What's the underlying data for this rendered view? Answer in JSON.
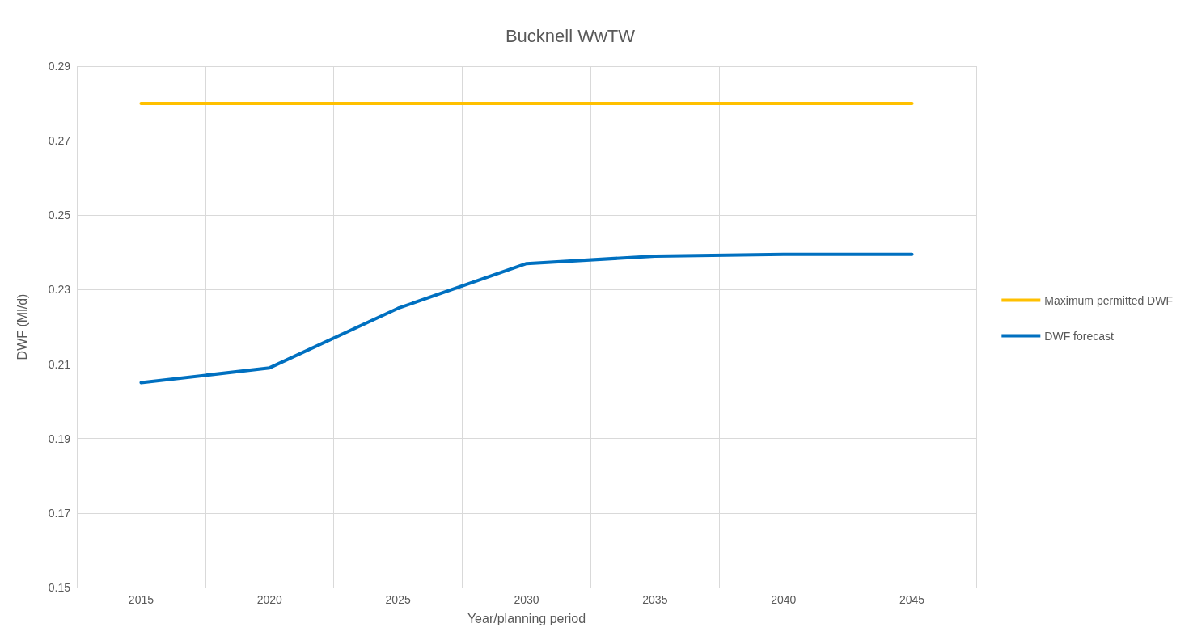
{
  "chart_data": {
    "type": "line",
    "title": "Bucknell WwTW",
    "xlabel": "Year/planning period",
    "ylabel": "DWF (Ml/d)",
    "categories": [
      "2015",
      "2020",
      "2025",
      "2030",
      "2035",
      "2040",
      "2045"
    ],
    "series": [
      {
        "name": "Maximum permitted DWF",
        "color": "#ffc000",
        "values": [
          0.28,
          0.28,
          0.28,
          0.28,
          0.28,
          0.28,
          0.28
        ]
      },
      {
        "name": "DWF forecast",
        "color": "#0070c0",
        "values": [
          0.205,
          0.209,
          0.225,
          0.237,
          0.239,
          0.2395,
          0.2395
        ]
      }
    ],
    "ylim": [
      0.15,
      0.29
    ],
    "yticks": [
      0.15,
      0.17,
      0.19,
      0.21,
      0.23,
      0.25,
      0.27,
      0.29
    ],
    "grid": true,
    "legend": "right",
    "marker": "none",
    "line_style": "solid"
  }
}
